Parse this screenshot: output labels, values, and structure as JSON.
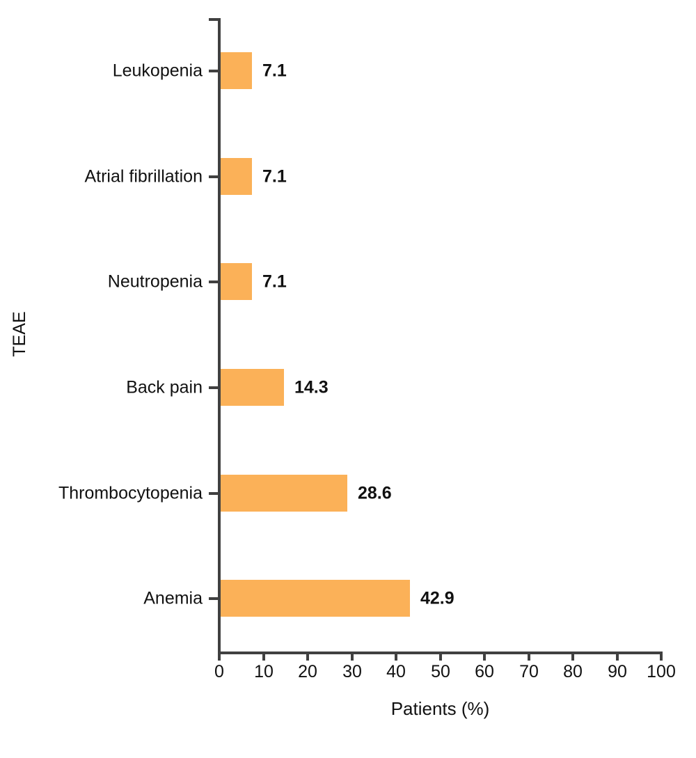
{
  "chart_data": {
    "type": "bar",
    "orientation": "horizontal",
    "title": "",
    "xlabel": "Patients (%)",
    "ylabel": "TEAE",
    "xlim": [
      0,
      100
    ],
    "x_ticks": [
      "0",
      "10",
      "20",
      "30",
      "40",
      "50",
      "60",
      "70",
      "80",
      "90",
      "100"
    ],
    "categories": [
      "Leukopenia",
      "Atrial fibrillation",
      "Neutropenia",
      "Back pain",
      "Thrombocytopenia",
      "Anemia"
    ],
    "values": [
      7.1,
      7.1,
      7.1,
      14.3,
      28.6,
      42.9
    ],
    "value_labels": [
      "7.1",
      "7.1",
      "7.1",
      "14.3",
      "28.6",
      "42.9"
    ],
    "bar_color": "#FBB158",
    "axis_color": "#404040",
    "text_color": "#111111",
    "grid": false,
    "legend": "none"
  }
}
